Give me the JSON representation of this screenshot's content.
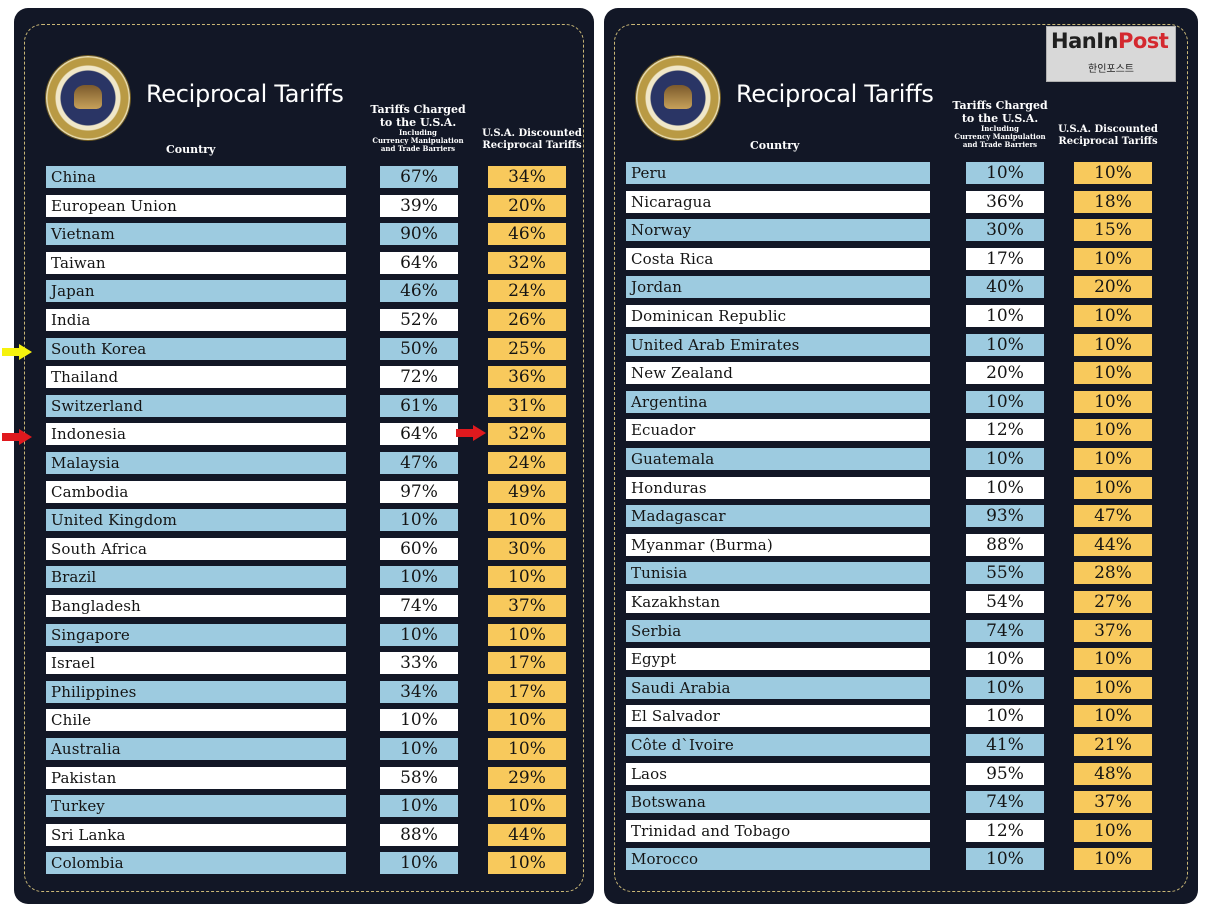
{
  "title": "Reciprocal Tariffs",
  "headers": {
    "country": "Country",
    "charged_line1": "Tariffs Charged",
    "charged_line2": "to the U.S.A.",
    "charged_line3": "Including",
    "charged_line4": "Currency Manipulation",
    "charged_line5": "and Trade Barriers",
    "disc_line1": "U.S.A. Discounted",
    "disc_line2": "Reciprocal Tariffs"
  },
  "seal_text": "SEAL OF THE PRESIDENT OF THE UNITED STATES",
  "logo": {
    "main_part1": "HanIn",
    "main_part2": "Post",
    "sub": "한인포스트"
  },
  "colors": {
    "background": "#121726",
    "blue_row": "#9dcbe0",
    "white_row": "#ffffff",
    "discount": "#f8c95c",
    "arrow_yellow": "#f6f20d",
    "arrow_red": "#e0191e"
  },
  "highlighted_rows": [
    "South Korea",
    "Indonesia"
  ],
  "left_table": [
    {
      "country": "China",
      "charged": "67%",
      "discounted": "34%"
    },
    {
      "country": "European Union",
      "charged": "39%",
      "discounted": "20%"
    },
    {
      "country": "Vietnam",
      "charged": "90%",
      "discounted": "46%"
    },
    {
      "country": "Taiwan",
      "charged": "64%",
      "discounted": "32%"
    },
    {
      "country": "Japan",
      "charged": "46%",
      "discounted": "24%"
    },
    {
      "country": "India",
      "charged": "52%",
      "discounted": "26%"
    },
    {
      "country": "South Korea",
      "charged": "50%",
      "discounted": "25%"
    },
    {
      "country": "Thailand",
      "charged": "72%",
      "discounted": "36%"
    },
    {
      "country": "Switzerland",
      "charged": "61%",
      "discounted": "31%"
    },
    {
      "country": "Indonesia",
      "charged": "64%",
      "discounted": "32%"
    },
    {
      "country": "Malaysia",
      "charged": "47%",
      "discounted": "24%"
    },
    {
      "country": "Cambodia",
      "charged": "97%",
      "discounted": "49%"
    },
    {
      "country": "United Kingdom",
      "charged": "10%",
      "discounted": "10%"
    },
    {
      "country": "South Africa",
      "charged": "60%",
      "discounted": "30%"
    },
    {
      "country": "Brazil",
      "charged": "10%",
      "discounted": "10%"
    },
    {
      "country": "Bangladesh",
      "charged": "74%",
      "discounted": "37%"
    },
    {
      "country": "Singapore",
      "charged": "10%",
      "discounted": "10%"
    },
    {
      "country": "Israel",
      "charged": "33%",
      "discounted": "17%"
    },
    {
      "country": "Philippines",
      "charged": "34%",
      "discounted": "17%"
    },
    {
      "country": "Chile",
      "charged": "10%",
      "discounted": "10%"
    },
    {
      "country": "Australia",
      "charged": "10%",
      "discounted": "10%"
    },
    {
      "country": "Pakistan",
      "charged": "58%",
      "discounted": "29%"
    },
    {
      "country": "Turkey",
      "charged": "10%",
      "discounted": "10%"
    },
    {
      "country": "Sri Lanka",
      "charged": "88%",
      "discounted": "44%"
    },
    {
      "country": "Colombia",
      "charged": "10%",
      "discounted": "10%"
    }
  ],
  "right_table": [
    {
      "country": "Peru",
      "charged": "10%",
      "discounted": "10%"
    },
    {
      "country": "Nicaragua",
      "charged": "36%",
      "discounted": "18%"
    },
    {
      "country": "Norway",
      "charged": "30%",
      "discounted": "15%"
    },
    {
      "country": "Costa Rica",
      "charged": "17%",
      "discounted": "10%"
    },
    {
      "country": "Jordan",
      "charged": "40%",
      "discounted": "20%"
    },
    {
      "country": "Dominican Republic",
      "charged": "10%",
      "discounted": "10%"
    },
    {
      "country": "United Arab Emirates",
      "charged": "10%",
      "discounted": "10%"
    },
    {
      "country": "New Zealand",
      "charged": "20%",
      "discounted": "10%"
    },
    {
      "country": "Argentina",
      "charged": "10%",
      "discounted": "10%"
    },
    {
      "country": "Ecuador",
      "charged": "12%",
      "discounted": "10%"
    },
    {
      "country": "Guatemala",
      "charged": "10%",
      "discounted": "10%"
    },
    {
      "country": "Honduras",
      "charged": "10%",
      "discounted": "10%"
    },
    {
      "country": "Madagascar",
      "charged": "93%",
      "discounted": "47%"
    },
    {
      "country": "Myanmar (Burma)",
      "charged": "88%",
      "discounted": "44%"
    },
    {
      "country": "Tunisia",
      "charged": "55%",
      "discounted": "28%"
    },
    {
      "country": "Kazakhstan",
      "charged": "54%",
      "discounted": "27%"
    },
    {
      "country": "Serbia",
      "charged": "74%",
      "discounted": "37%"
    },
    {
      "country": "Egypt",
      "charged": "10%",
      "discounted": "10%"
    },
    {
      "country": "Saudi Arabia",
      "charged": "10%",
      "discounted": "10%"
    },
    {
      "country": "El Salvador",
      "charged": "10%",
      "discounted": "10%"
    },
    {
      "country": "Côte d`Ivoire",
      "charged": "41%",
      "discounted": "21%"
    },
    {
      "country": "Laos",
      "charged": "95%",
      "discounted": "48%"
    },
    {
      "country": "Botswana",
      "charged": "74%",
      "discounted": "37%"
    },
    {
      "country": "Trinidad and Tobago",
      "charged": "12%",
      "discounted": "10%"
    },
    {
      "country": "Morocco",
      "charged": "10%",
      "discounted": "10%"
    }
  ]
}
